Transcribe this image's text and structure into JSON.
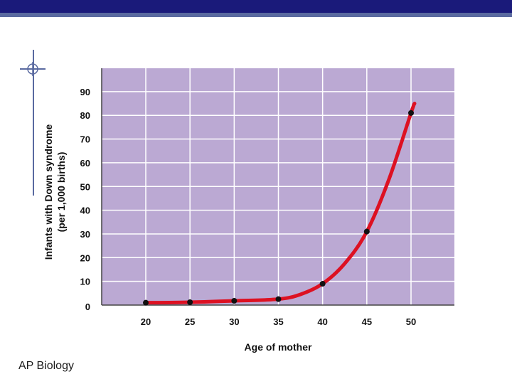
{
  "footer": {
    "label": "AP Biology"
  },
  "colors": {
    "plot_background": "#bba9d3",
    "grid": "#ffffff",
    "curve": "#dd1122",
    "points": "#111111",
    "header_bar": "#1a1a7a",
    "header_accent": "#5a6aa0"
  },
  "icons": {
    "crosshair": "crosshair-icon"
  },
  "chart_data": {
    "type": "line",
    "title": "",
    "xlabel": "Age of mother",
    "ylabel_line1": "Infants with Down syndrome",
    "ylabel_line2": "(per 1,000 births)",
    "xlim": [
      15,
      55
    ],
    "ylim": [
      0,
      100
    ],
    "x_ticks": [
      20,
      25,
      30,
      35,
      40,
      45,
      50
    ],
    "y_ticks": [
      0,
      10,
      20,
      30,
      40,
      50,
      60,
      70,
      80,
      90
    ],
    "grid": true,
    "points": [
      {
        "x": 20,
        "y": 1
      },
      {
        "x": 25,
        "y": 1.2
      },
      {
        "x": 30,
        "y": 1.8
      },
      {
        "x": 35,
        "y": 2.5
      },
      {
        "x": 40,
        "y": 9
      },
      {
        "x": 45,
        "y": 31
      },
      {
        "x": 50,
        "y": 81
      }
    ],
    "curve": [
      {
        "x": 20,
        "y": 1
      },
      {
        "x": 25,
        "y": 1.2
      },
      {
        "x": 30,
        "y": 1.8
      },
      {
        "x": 35,
        "y": 2.5
      },
      {
        "x": 37.5,
        "y": 4.5
      },
      {
        "x": 40,
        "y": 9
      },
      {
        "x": 42.5,
        "y": 17.5
      },
      {
        "x": 45,
        "y": 31
      },
      {
        "x": 47.5,
        "y": 53
      },
      {
        "x": 50,
        "y": 81
      },
      {
        "x": 50.4,
        "y": 85
      }
    ]
  }
}
